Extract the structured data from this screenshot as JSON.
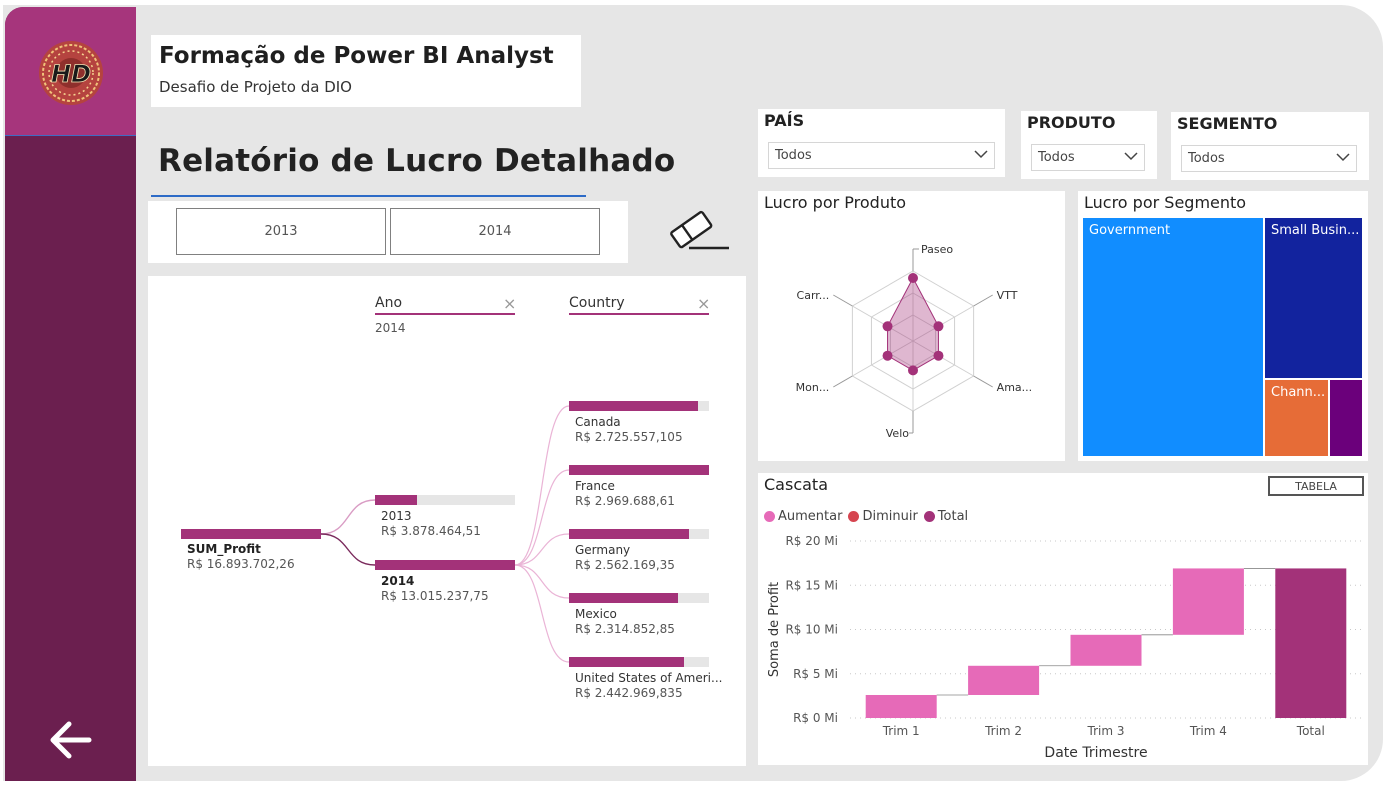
{
  "header": {
    "title": "Formação de Power BI Analyst",
    "subtitle": "Desafio de Projeto da DIO"
  },
  "report_title": "Relatório de Lucro Detalhado",
  "year_buttons": [
    "2013",
    "2014"
  ],
  "slicers": [
    {
      "label": "PAÍS",
      "value": "Todos"
    },
    {
      "label": "PRODUTO",
      "value": "Todos"
    },
    {
      "label": "SEGMENTO",
      "value": "Todos"
    }
  ],
  "decomposition_tree": {
    "levels": [
      {
        "name": "Ano",
        "selected": "2014"
      },
      {
        "name": "Country",
        "selected": ""
      }
    ],
    "root": {
      "label": "SUM_Profit",
      "value": "R$ 16.893.702,26"
    },
    "years": [
      {
        "label": "2013",
        "value": "R$ 3.878.464,51",
        "fraction": 0.3
      },
      {
        "label": "2014",
        "value": "R$ 13.015.237,75",
        "fraction": 1.0
      }
    ],
    "countries": [
      {
        "label": "Canada",
        "value": "R$ 2.725.557,105",
        "fraction": 0.92
      },
      {
        "label": "France",
        "value": "R$ 2.969.688,61",
        "fraction": 1.0
      },
      {
        "label": "Germany",
        "value": "R$ 2.562.169,35",
        "fraction": 0.86
      },
      {
        "label": "Mexico",
        "value": "R$ 2.314.852,85",
        "fraction": 0.78
      },
      {
        "label": "United States of Ameri...",
        "value": "R$ 2.442.969,835",
        "fraction": 0.82
      }
    ]
  },
  "radar": {
    "title": "Lucro por Produto",
    "axes": [
      "Paseo",
      "VTT",
      "Ama...",
      "Velo",
      "Mon...",
      "Carr..."
    ],
    "values": [
      0.9,
      0.42,
      0.42,
      0.42,
      0.42,
      0.42
    ]
  },
  "treemap": {
    "title": "Lucro por Segmento",
    "items": [
      {
        "label": "Government",
        "color": "#118dff"
      },
      {
        "label": "Small Busin...",
        "color": "#12239e"
      },
      {
        "label": "Chann...",
        "color": "#e66c37"
      },
      {
        "label": "",
        "color": "#6b007b"
      }
    ]
  },
  "waterfall": {
    "title": "Cascata",
    "button": "TABELA",
    "legend": [
      {
        "label": "Aumentar",
        "color": "#e66ab8"
      },
      {
        "label": "Diminuir",
        "color": "#d64550"
      },
      {
        "label": "Total",
        "color": "#a33279"
      }
    ],
    "ytick_labels": [
      "R$ 0 Mi",
      "R$ 5 Mi",
      "R$ 10 Mi",
      "R$ 15 Mi",
      "R$ 20 Mi"
    ],
    "xlabel": "Date Trimestre",
    "ylabel": "Soma de Profit"
  },
  "chart_data": {
    "type": "bar",
    "subtype": "waterfall",
    "title": "Cascata",
    "categories": [
      "Trim 1",
      "Trim 2",
      "Trim 3",
      "Trim 4",
      "Total"
    ],
    "series": [
      {
        "name": "Aumentar",
        "values": [
          2.6,
          3.3,
          3.5,
          7.5,
          0
        ]
      },
      {
        "name": "Total",
        "values": [
          0,
          0,
          0,
          0,
          16.9
        ]
      }
    ],
    "xlabel": "Date Trimestre",
    "ylabel": "Soma de Profit",
    "ylim": [
      0,
      20
    ],
    "yticks": [
      0,
      5,
      10,
      15,
      20
    ],
    "grid": true,
    "legend": "top-left"
  }
}
